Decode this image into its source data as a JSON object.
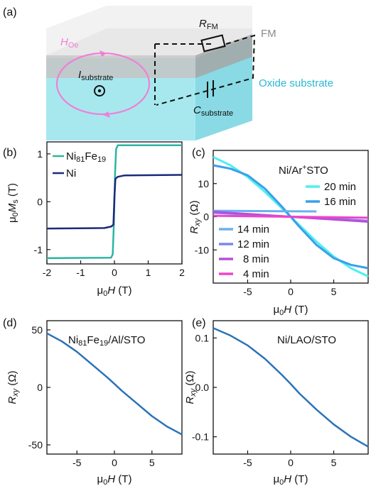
{
  "panel_a": {
    "label": "(a)",
    "fm_label": "FM",
    "oxide_label": "Oxide substrate",
    "h_oe": {
      "base": "H",
      "sub": "Oe"
    },
    "r_fm": {
      "base": "R",
      "sub": "FM"
    },
    "i_sub": {
      "base": "I",
      "sub": "substrate"
    },
    "c_sub": {
      "base": "C",
      "sub": "substrate"
    },
    "colors": {
      "fm_top": "#dcdcdc",
      "fm_front": "#bdbdbd",
      "fm_side": "#9e9e9e",
      "sub_front": "#a7e8ef",
      "sub_side": "#7fd6e0",
      "pink": "#f07fd6",
      "cyan_text": "#2ab7d4"
    }
  },
  "chart_data": [
    {
      "panel": "(b)",
      "type": "line",
      "xlabel": {
        "greek": "μ",
        "sub": "0",
        "italic": "H",
        "unit": " (T)"
      },
      "ylabel": {
        "greek": "μ",
        "sub0": "0",
        "italic": "M",
        "sub": "s",
        "unit": " (T)"
      },
      "xlim": [
        -2,
        2
      ],
      "ylim": [
        -1.3,
        1.25
      ],
      "xticks": [
        "-2",
        "-1",
        "0",
        "1",
        "2"
      ],
      "xtick_values": [
        -2,
        -1,
        0,
        1,
        2
      ],
      "yticks": [
        "-1",
        "0",
        "1"
      ],
      "ytick_values": [
        -1,
        0,
        1
      ],
      "legend": "top-left",
      "series": [
        {
          "name": "Ni81Fe19",
          "label_base": "Ni",
          "label_sub1": "81",
          "label_mid": "Fe",
          "label_sub2": "19",
          "color": "#2bb5a0",
          "x": [
            -2,
            -0.1,
            -0.05,
            -0.02,
            0,
            0.02,
            0.05,
            0.1,
            2
          ],
          "y": [
            -1.18,
            -1.17,
            -1.1,
            -0.5,
            0,
            0.6,
            1.1,
            1.18,
            1.18
          ]
        },
        {
          "name": "Ni",
          "label_base": "Ni",
          "color": "#1c2a7a",
          "x": [
            -2,
            -0.3,
            -0.1,
            -0.03,
            0,
            0.03,
            0.1,
            0.3,
            2
          ],
          "y": [
            -0.56,
            -0.55,
            -0.52,
            -0.48,
            0.1,
            0.48,
            0.52,
            0.55,
            0.56
          ]
        }
      ]
    },
    {
      "panel": "(c)",
      "type": "line",
      "title": {
        "pre": "Ni/Ar",
        "sup": "+",
        "post": "STO"
      },
      "xlabel": {
        "greek": "μ",
        "sub": "0",
        "italic": "H",
        "unit": " (T)"
      },
      "ylabel": {
        "italic": "R",
        "sub": "xy",
        "unit": " (Ω)"
      },
      "xlim": [
        -9,
        9
      ],
      "ylim": [
        -20,
        20
      ],
      "xticks": [
        "-5",
        "0",
        "5"
      ],
      "xtick_values": [
        -5,
        0,
        5
      ],
      "yticks": [
        "-10",
        "0",
        "10"
      ],
      "ytick_values": [
        -10,
        0,
        10
      ],
      "series": [
        {
          "name": "20 min",
          "color": "#4cf0f0",
          "x": [
            -9,
            -7,
            -5,
            -3,
            -1,
            0,
            1,
            3,
            5,
            7,
            9
          ],
          "y": [
            18,
            15.5,
            12,
            7.5,
            2.5,
            0,
            -2.5,
            -7.5,
            -12,
            -15.5,
            -18
          ]
        },
        {
          "name": "16 min",
          "color": "#3a9fe8",
          "x": [
            -9,
            -7,
            -5,
            -3,
            -1,
            0,
            1,
            3,
            5,
            7,
            9
          ],
          "y": [
            15.5,
            14.5,
            12.5,
            8.5,
            3,
            0,
            -3,
            -8.5,
            -12.5,
            -14.5,
            -15.5
          ]
        },
        {
          "name": "14 min",
          "color": "#6ab0f0",
          "x": [
            -9,
            3
          ],
          "y": [
            1.8,
            1.6
          ]
        },
        {
          "name": "12 min",
          "color": "#7c86ee",
          "x": [
            -9,
            9
          ],
          "y": [
            1.2,
            -1.2
          ]
        },
        {
          "name": "8 min",
          "color": "#b84ed6",
          "x": [
            -9,
            9
          ],
          "y": [
            1.5,
            -1.5
          ]
        },
        {
          "name": "4 min",
          "color": "#ee44cc",
          "x": [
            -9,
            9
          ],
          "y": [
            0.3,
            -0.3
          ]
        }
      ]
    },
    {
      "panel": "(d)",
      "type": "line",
      "title": {
        "pre": "Ni",
        "sub1": "81",
        "mid": "Fe",
        "sub2": "19",
        "post": "/Al/STO"
      },
      "xlabel": {
        "greek": "μ",
        "sub": "0",
        "italic": "H",
        "unit": " (T)"
      },
      "ylabel": {
        "italic": "R",
        "sub": "xy",
        "unit": " (Ω)"
      },
      "xlim": [
        -9,
        9
      ],
      "ylim": [
        -58,
        58
      ],
      "xticks": [
        "-5",
        "0",
        "5"
      ],
      "xtick_values": [
        -5,
        0,
        5
      ],
      "yticks": [
        "-50",
        "0",
        "50"
      ],
      "ytick_values": [
        -50,
        0,
        50
      ],
      "series": [
        {
          "color": "#2b73b8",
          "x": [
            -9,
            -7,
            -5,
            -3,
            -1,
            0,
            1,
            3,
            5,
            7,
            9
          ],
          "y": [
            47,
            40,
            31,
            20,
            9,
            3,
            -3,
            -14,
            -25,
            -34,
            -41
          ]
        }
      ]
    },
    {
      "panel": "(e)",
      "type": "line",
      "title": {
        "pre": "Ni/LAO/STO"
      },
      "xlabel": {
        "greek": "μ",
        "sub": "0",
        "italic": "H",
        "unit": " (T)"
      },
      "ylabel": {
        "italic": "R",
        "sub": "xy",
        "unit": " (Ω)"
      },
      "xlim": [
        -9,
        9
      ],
      "ylim": [
        -0.135,
        0.135
      ],
      "xticks": [
        "-5",
        "0",
        "5"
      ],
      "xtick_values": [
        -5,
        0,
        5
      ],
      "yticks": [
        "-0.1",
        "0.0",
        "0.1"
      ],
      "ytick_values": [
        -0.1,
        0,
        0.1
      ],
      "series": [
        {
          "color": "#2b73b8",
          "x": [
            -9,
            -7,
            -5,
            -3,
            -1,
            0,
            1,
            3,
            5,
            7,
            9
          ],
          "y": [
            0.12,
            0.105,
            0.085,
            0.058,
            0.025,
            0.007,
            -0.012,
            -0.045,
            -0.075,
            -0.1,
            -0.12
          ]
        }
      ]
    }
  ]
}
